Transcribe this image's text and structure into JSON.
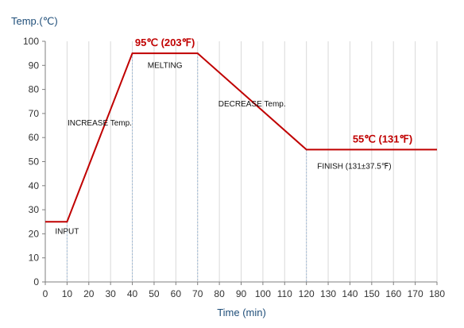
{
  "chart_data": {
    "type": "line",
    "title": "",
    "ylabel": "Temp.(℃)",
    "xlabel": "Time (min)",
    "xlim": [
      0,
      180
    ],
    "ylim": [
      0,
      100
    ],
    "xticks": [
      0,
      10,
      20,
      30,
      40,
      50,
      60,
      70,
      80,
      90,
      100,
      110,
      120,
      130,
      140,
      150,
      160,
      170,
      180
    ],
    "yticks": [
      0,
      10,
      20,
      30,
      40,
      50,
      60,
      70,
      80,
      90,
      100
    ],
    "grid": "vertical",
    "series": [
      {
        "x": [
          0,
          10,
          40,
          70,
          120,
          180
        ],
        "y": [
          25,
          25,
          95,
          95,
          55,
          55
        ]
      }
    ],
    "guide_lines_x": [
      10,
      40,
      70,
      120
    ],
    "annotations": [
      {
        "id": "input",
        "text": "INPUT",
        "x": 10,
        "y": 20
      },
      {
        "id": "increase",
        "text": "INCREASE Temp.",
        "x": 25,
        "y": 65
      },
      {
        "id": "melting",
        "text": "MELTING",
        "x": 55,
        "y": 89
      },
      {
        "id": "decrease",
        "text": "DECREASE Temp.",
        "x": 95,
        "y": 73
      },
      {
        "id": "finish",
        "text": "FINISH (131±37.5℉)",
        "x": 142,
        "y": 47
      },
      {
        "id": "peak-high",
        "text": "95℃ (203℉)",
        "x": 55,
        "y": 98
      },
      {
        "id": "peak-low",
        "text": "55℃ (131℉)",
        "x": 155,
        "y": 58
      }
    ],
    "colors": {
      "line": "#c00000",
      "peak_text": "#c00000",
      "axis_label": "#1f4e79",
      "grid": "#d9d9d9",
      "guide": "#9bb7d4"
    }
  }
}
